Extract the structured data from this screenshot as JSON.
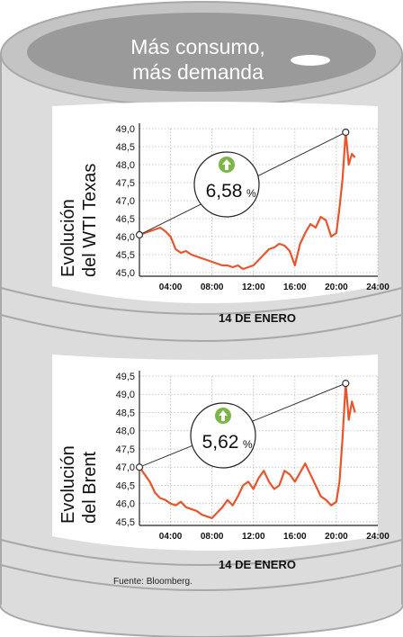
{
  "title": [
    "Más consumo,",
    "más demanda"
  ],
  "source": "Fuente: Bloomberg.",
  "colors": {
    "barrel_body": "#dcdcdc",
    "barrel_top": "#bfbfbf",
    "barrel_lid": "#999999",
    "barrel_outline": "#a8a8a8",
    "panel": "#ffffff",
    "line": "#e8552d",
    "arrow": "#7ab648",
    "grid": "#b8b8b8"
  },
  "chart_data": [
    {
      "type": "line",
      "ylabel": [
        "Evolución",
        "del WTI Texas"
      ],
      "xlabel": "14 DE ENERO",
      "change_label": "6,58",
      "change_unit": "%",
      "direction": "up",
      "grid": true,
      "ylim": [
        44.9,
        49.0
      ],
      "yticks": [
        "49,0",
        "48,5",
        "48,0",
        "47,5",
        "47,0",
        "46,5",
        "46,0",
        "45,5",
        "45,0"
      ],
      "ytick_values": [
        49.0,
        48.5,
        48.0,
        47.5,
        47.0,
        46.5,
        46.0,
        45.5,
        45.0
      ],
      "xlim": [
        1.0,
        24.0
      ],
      "xticks": [
        "04:00",
        "08:00",
        "12:00",
        "16:00",
        "20:00",
        "24:00"
      ],
      "xtick_values": [
        4,
        8,
        12,
        16,
        20,
        24
      ],
      "x": [
        1.0,
        1.5,
        2.0,
        2.5,
        3.0,
        3.5,
        4.0,
        4.5,
        5.0,
        5.5,
        6.0,
        6.5,
        7.0,
        7.5,
        8.0,
        8.5,
        9.0,
        9.5,
        10.0,
        10.5,
        11.0,
        11.5,
        12.0,
        12.5,
        13.0,
        13.5,
        14.0,
        14.5,
        15.0,
        15.5,
        16.0,
        16.5,
        17.0,
        17.5,
        18.0,
        18.5,
        19.0,
        19.5,
        20.0,
        20.3,
        20.6,
        20.9,
        21.2,
        21.5,
        21.8
      ],
      "values": [
        46.05,
        46.1,
        46.15,
        46.2,
        46.25,
        46.15,
        46.0,
        45.65,
        45.55,
        45.6,
        45.5,
        45.45,
        45.4,
        45.35,
        45.3,
        45.25,
        45.2,
        45.2,
        45.15,
        45.2,
        45.1,
        45.15,
        45.2,
        45.35,
        45.5,
        45.65,
        45.7,
        45.8,
        45.75,
        45.6,
        45.2,
        45.8,
        46.1,
        46.35,
        46.25,
        46.55,
        46.45,
        46.0,
        46.1,
        46.8,
        47.6,
        48.9,
        48.0,
        48.3,
        48.2
      ],
      "start_point": [
        1.0,
        46.05
      ],
      "end_point": [
        20.9,
        48.9
      ]
    },
    {
      "type": "line",
      "ylabel": [
        "Evolución",
        "del Brent"
      ],
      "xlabel": "14 DE ENERO",
      "change_label": "5,62",
      "change_unit": "%",
      "direction": "up",
      "grid": true,
      "ylim": [
        45.4,
        49.5
      ],
      "yticks": [
        "49,5",
        "49,0",
        "48,5",
        "48,0",
        "47,5",
        "47,0",
        "46,5",
        "46,0",
        "45,5"
      ],
      "ytick_values": [
        49.5,
        49.0,
        48.5,
        48.0,
        47.5,
        47.0,
        46.5,
        46.0,
        45.5
      ],
      "xlim": [
        1.0,
        24.0
      ],
      "xticks": [
        "04:00",
        "08:00",
        "12:00",
        "16:00",
        "20:00",
        "24:00"
      ],
      "xtick_values": [
        4,
        8,
        12,
        16,
        20,
        24
      ],
      "x": [
        1.0,
        1.5,
        2.0,
        2.5,
        3.0,
        3.5,
        4.0,
        4.5,
        5.0,
        5.5,
        6.0,
        6.5,
        7.0,
        7.5,
        8.0,
        8.5,
        9.0,
        9.5,
        10.0,
        10.5,
        11.0,
        11.5,
        12.0,
        12.5,
        13.0,
        13.5,
        14.0,
        14.5,
        15.0,
        15.5,
        16.0,
        16.5,
        17.0,
        17.5,
        18.0,
        18.5,
        19.0,
        19.5,
        20.0,
        20.3,
        20.6,
        20.9,
        21.2,
        21.5,
        21.8
      ],
      "values": [
        47.0,
        46.8,
        46.6,
        46.3,
        46.15,
        46.1,
        46.0,
        45.95,
        46.05,
        45.9,
        45.85,
        45.8,
        45.7,
        45.65,
        45.6,
        45.75,
        45.9,
        46.1,
        45.95,
        46.2,
        46.5,
        46.6,
        46.4,
        46.7,
        46.9,
        46.6,
        46.4,
        46.5,
        46.9,
        46.8,
        46.6,
        46.85,
        47.1,
        46.8,
        46.5,
        46.2,
        46.1,
        45.95,
        46.05,
        46.6,
        47.8,
        49.3,
        48.3,
        48.8,
        48.5
      ],
      "start_point": [
        1.0,
        47.0
      ],
      "end_point": [
        20.9,
        49.3
      ]
    }
  ]
}
